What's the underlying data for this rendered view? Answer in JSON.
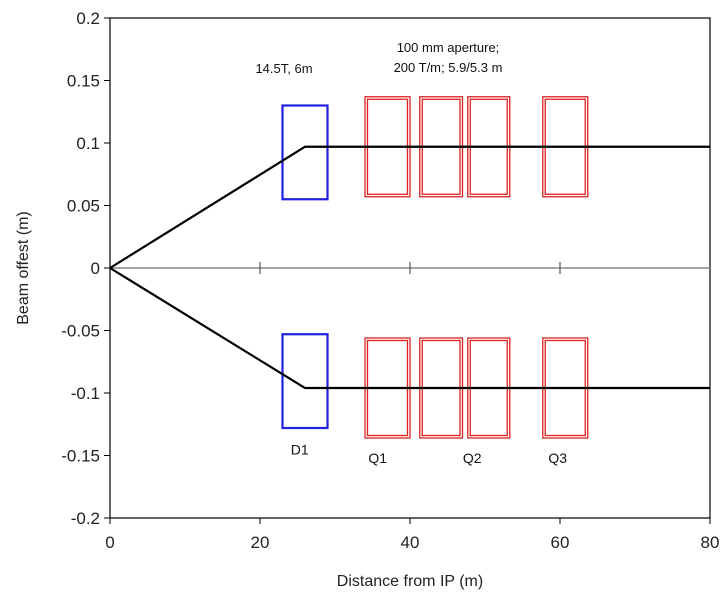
{
  "chart_data": {
    "type": "line",
    "title": "",
    "xlabel": "Distance from IP (m)",
    "ylabel": "Beam offest (m)",
    "xlim": [
      0,
      80
    ],
    "ylim": [
      -0.2,
      0.2
    ],
    "x_ticks": [
      "0",
      "20",
      "40",
      "60",
      "80"
    ],
    "y_ticks": [
      "0.2",
      "0.15",
      "0.1",
      "0.05",
      "0",
      "-0.05",
      "-0.1",
      "-0.15",
      "-0.2"
    ],
    "grid": false,
    "series": [
      {
        "x": [
          0,
          26,
          80
        ],
        "y": [
          0,
          0.097,
          0.097
        ],
        "color": "#000000"
      },
      {
        "x": [
          0,
          26,
          80
        ],
        "y": [
          0,
          -0.096,
          -0.096
        ],
        "color": "#000000"
      }
    ],
    "center_line": {
      "y": 0,
      "ticks_x": [
        20,
        40,
        60
      ],
      "color": "#888888"
    },
    "magnets": [
      {
        "type": "dipole",
        "color": "#2020e0",
        "x0": 23,
        "x1": 29,
        "upper": [
          0.055,
          0.13
        ],
        "lower": [
          -0.128,
          -0.053
        ]
      },
      {
        "type": "quad",
        "color": "#e02020",
        "x0": 34,
        "x1": 40,
        "upper": [
          0.057,
          0.137
        ],
        "lower": [
          -0.136,
          -0.056
        ]
      },
      {
        "type": "quad",
        "color": "#e02020",
        "x0": 41.3,
        "x1": 47,
        "upper": [
          0.057,
          0.137
        ],
        "lower": [
          -0.136,
          -0.056
        ]
      },
      {
        "type": "quad",
        "color": "#e02020",
        "x0": 47.7,
        "x1": 53.3,
        "upper": [
          0.057,
          0.137
        ],
        "lower": [
          -0.136,
          -0.056
        ]
      },
      {
        "type": "quad",
        "color": "#e02020",
        "x0": 57.7,
        "x1": 63.7,
        "upper": [
          0.057,
          0.137
        ],
        "lower": [
          -0.136,
          -0.056
        ]
      }
    ],
    "annotations": {
      "dipole_spec": "14.5T, 6m",
      "quad_spec_line1": "100 mm aperture;",
      "quad_spec_line2": "200 T/m; 5.9/5.3 m"
    },
    "magnet_labels": [
      {
        "text": "D1",
        "x": 25.3,
        "y": -0.149
      },
      {
        "text": "Q1",
        "x": 35.7,
        "y": -0.156
      },
      {
        "text": "Q2",
        "x": 48.3,
        "y": -0.156
      },
      {
        "text": "Q3",
        "x": 59.7,
        "y": -0.156
      }
    ]
  }
}
